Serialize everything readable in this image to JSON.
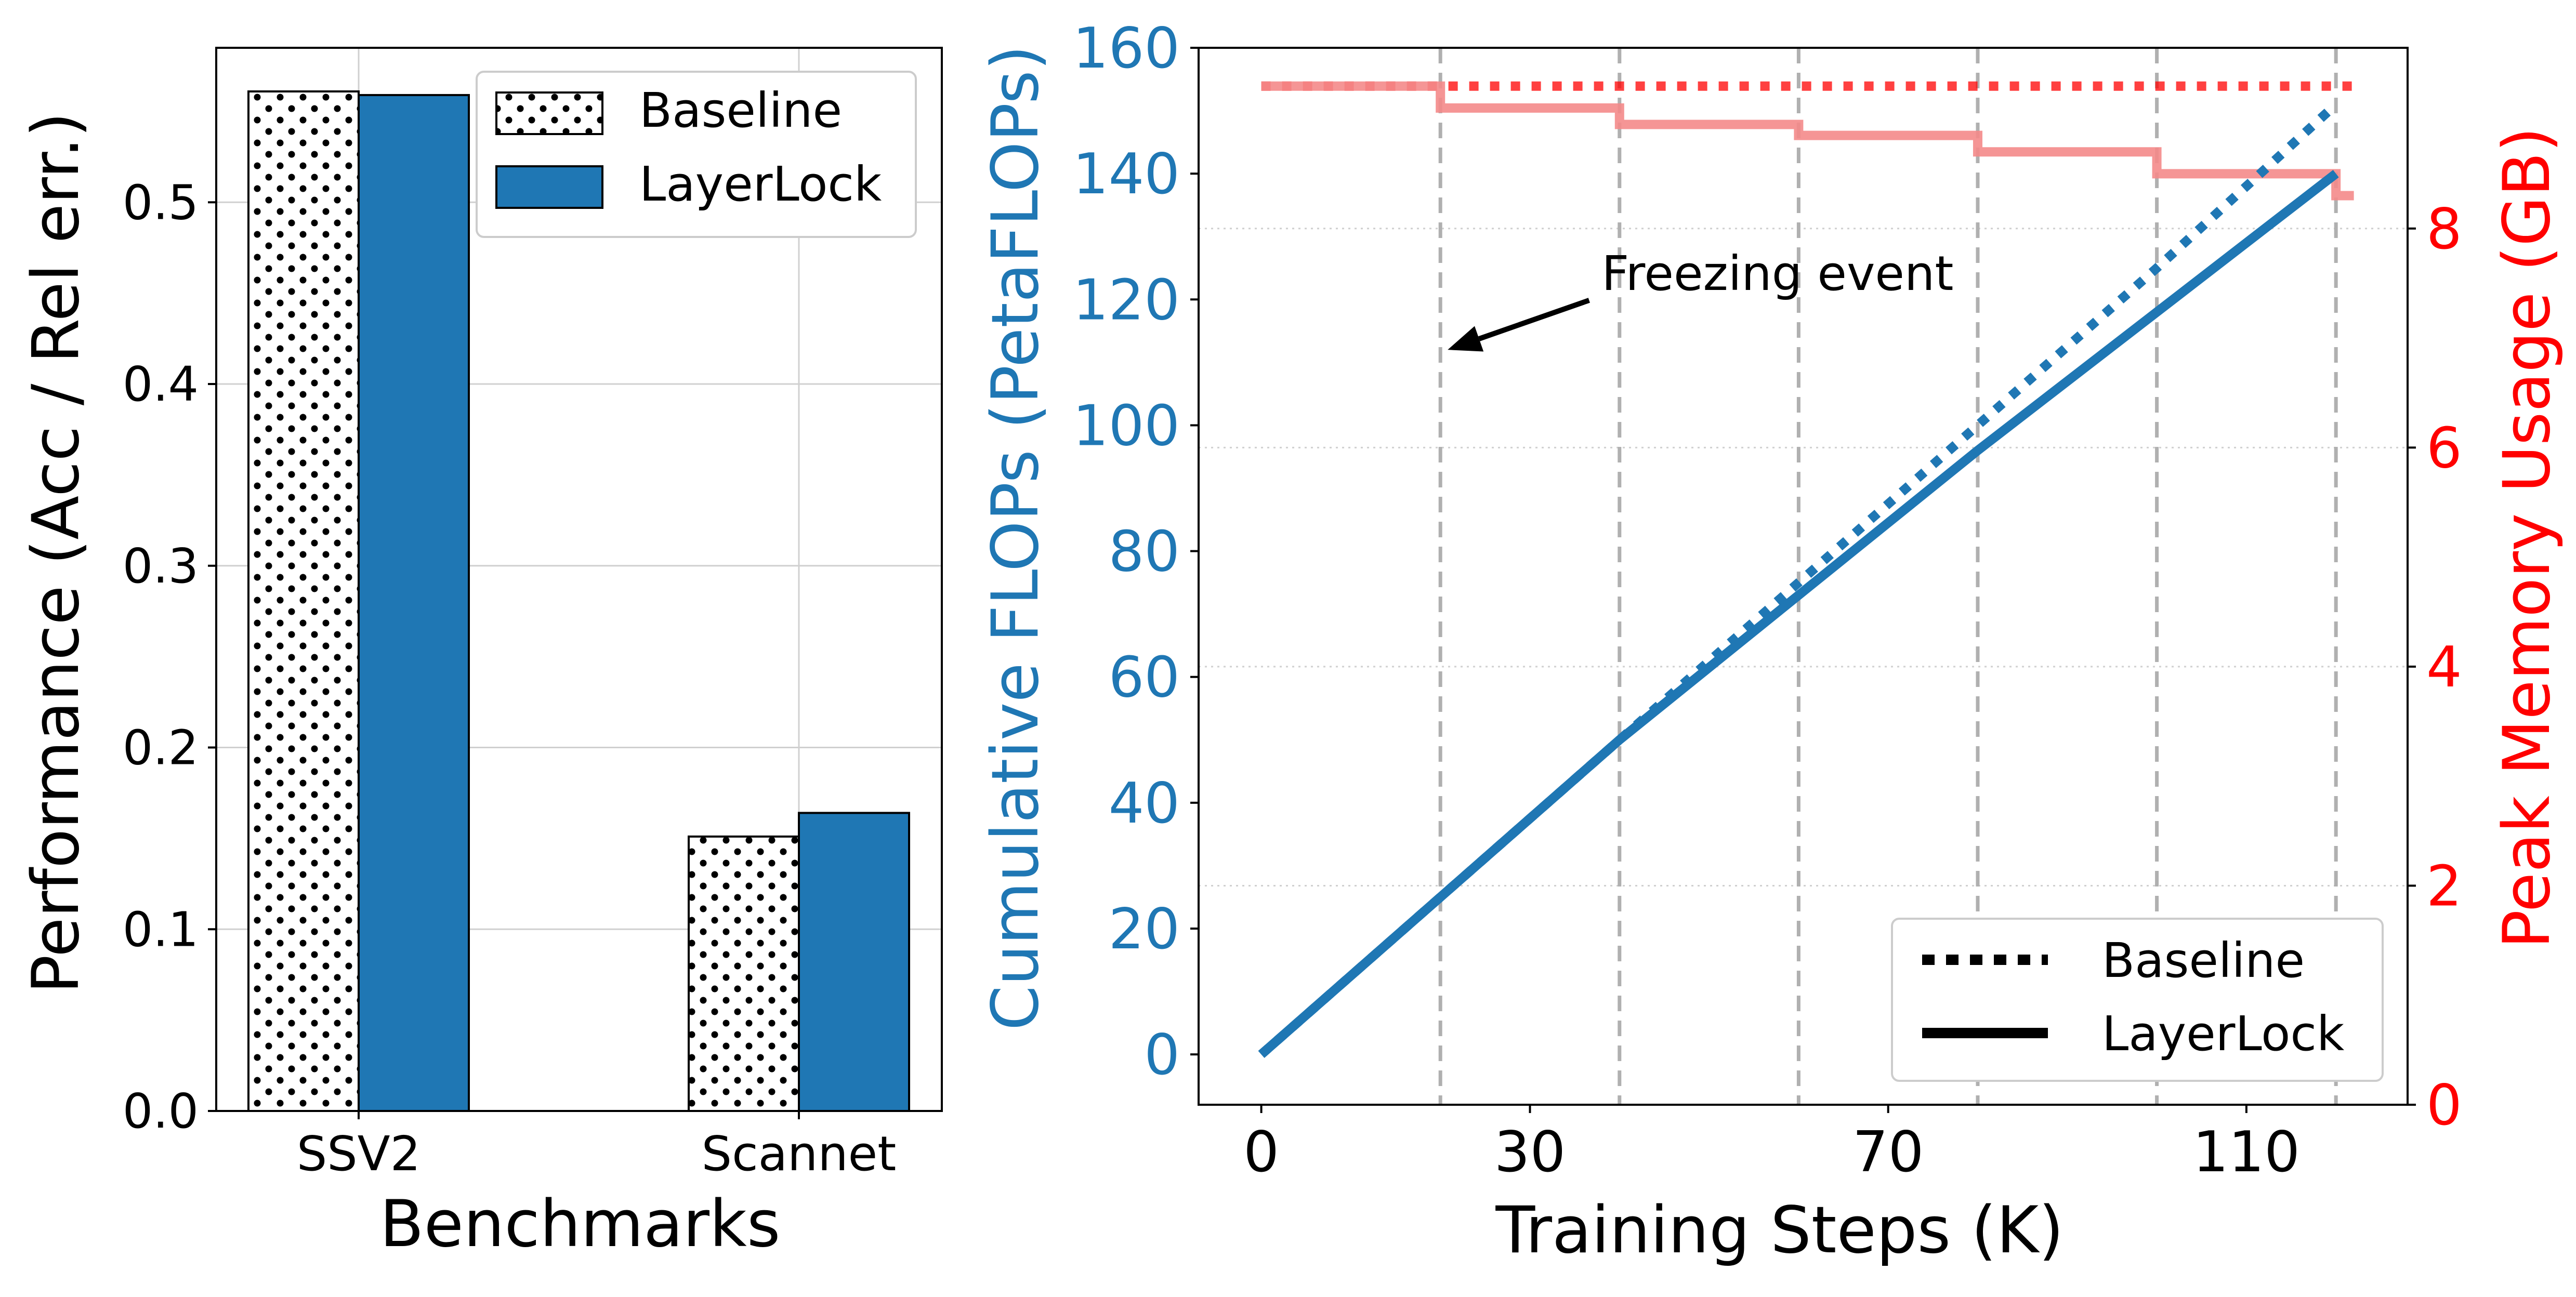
{
  "colors": {
    "blue": "#1f77b4",
    "red": "#ff0000",
    "red_light": "#f48a8a",
    "black": "#000000",
    "grid": "#d0d0d0",
    "dashed": "#b0b0b0"
  },
  "chart_data": [
    {
      "type": "bar",
      "xlabel": "Benchmarks",
      "ylabel": "Performance (Acc / Rel err.)",
      "categories": [
        "SSV2",
        "Scannet"
      ],
      "ylim": [
        0,
        0.585
      ],
      "yticks": [
        0.0,
        0.1,
        0.2,
        0.3,
        0.4,
        0.5
      ],
      "ytick_labels": [
        "0.0",
        "0.1",
        "0.2",
        "0.3",
        "0.4",
        "0.5"
      ],
      "grid": true,
      "legend_position": "top-right",
      "series": [
        {
          "name": "Baseline",
          "pattern": "dotted",
          "values": [
            0.561,
            0.151
          ]
        },
        {
          "name": "LayerLock",
          "color": "#1f77b4",
          "values": [
            0.559,
            0.164
          ]
        }
      ]
    },
    {
      "type": "line",
      "xlabel": "Training Steps (K)",
      "ylabel_left": "Cumulative FLOPs (PetaFLOPs)",
      "ylabel_right": "Peak Memory Usage (GB)",
      "xlim": [
        -7,
        128
      ],
      "xticks": [
        0,
        30,
        70,
        110
      ],
      "xtick_labels": [
        "0",
        "30",
        "70",
        "110"
      ],
      "ylim_left": [
        -8,
        160
      ],
      "yticks_left": [
        0,
        20,
        40,
        60,
        80,
        100,
        120,
        140,
        160
      ],
      "ytick_labels_left": [
        "0",
        "20",
        "40",
        "60",
        "80",
        "100",
        "120",
        "140",
        "160"
      ],
      "ylim_right": [
        0,
        9.65
      ],
      "yticks_right": [
        0,
        2,
        4,
        6,
        8
      ],
      "ytick_labels_right": [
        "0",
        "2",
        "4",
        "6",
        "8"
      ],
      "freezing_steps": [
        20,
        40,
        60,
        80,
        100,
        120
      ],
      "annotation": {
        "text": "Freezing event",
        "text_x": 38,
        "text_y": 124,
        "arrow_to_x": 20,
        "arrow_to_y": 112
      },
      "legend_position": "lower-right",
      "legend": [
        {
          "name": "Baseline",
          "style": "dotted"
        },
        {
          "name": "LayerLock",
          "style": "solid"
        }
      ],
      "flops_series": [
        {
          "name": "Baseline",
          "axis": "left",
          "style": "dotted",
          "x": [
            0,
            20,
            40,
            60,
            80,
            100,
            120
          ],
          "y": [
            0,
            25,
            50,
            75,
            100,
            125,
            151
          ]
        },
        {
          "name": "LayerLock",
          "axis": "left",
          "style": "solid",
          "x": [
            0,
            20,
            40,
            60,
            80,
            100,
            120
          ],
          "y": [
            0,
            25,
            50,
            73,
            96,
            118,
            140
          ]
        }
      ],
      "memory_series": [
        {
          "name": "Baseline",
          "axis": "right",
          "style": "dotted",
          "x": [
            0,
            122
          ],
          "y": [
            9.3,
            9.3
          ]
        },
        {
          "name": "LayerLock",
          "axis": "right",
          "style": "steps",
          "x": [
            0,
            20,
            40,
            60,
            80,
            100,
            120,
            122
          ],
          "y": [
            9.3,
            9.1,
            8.95,
            8.85,
            8.7,
            8.5,
            8.3,
            8.3
          ]
        }
      ]
    }
  ]
}
